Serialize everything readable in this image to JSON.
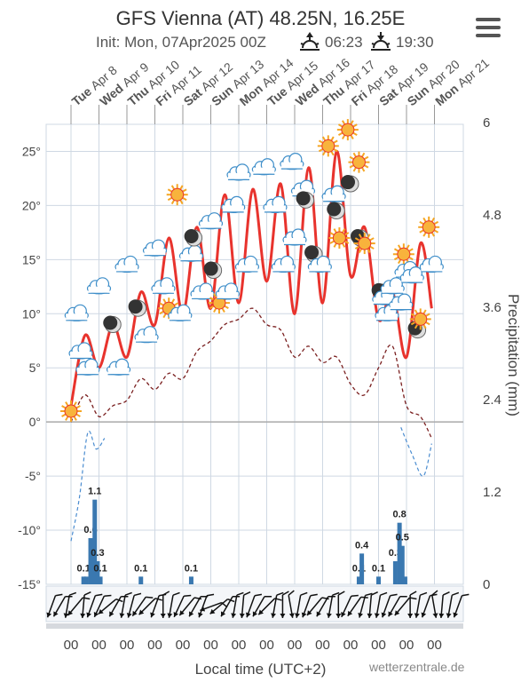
{
  "header": {
    "title": "GFS Vienna (AT) 48.25N, 16.25E",
    "init": "Init: Mon, 07Apr2025 00Z",
    "sunrise": "06:23",
    "sunset": "19:30"
  },
  "footer": {
    "xlabel": "Local time (UTC+2)",
    "credit": "wetterzentrale.de"
  },
  "colors": {
    "temperature": "#e8332d",
    "dewpoint": "#7a1f1f",
    "below_zero": "#4a8cd0",
    "precip": "#3a78b0",
    "grid": "#cfd8e3",
    "axis": "#555555"
  },
  "chart_data": {
    "type": "line",
    "days": [
      {
        "dow": "Tue",
        "date": "Apr 8"
      },
      {
        "dow": "Wed",
        "date": "Apr 9"
      },
      {
        "dow": "Thu",
        "date": "Apr 10"
      },
      {
        "dow": "Fri",
        "date": "Apr 11"
      },
      {
        "dow": "Sat",
        "date": "Apr 12"
      },
      {
        "dow": "Sun",
        "date": "Apr 13"
      },
      {
        "dow": "Mon",
        "date": "Apr 14"
      },
      {
        "dow": "Tue",
        "date": "Apr 15"
      },
      {
        "dow": "Wed",
        "date": "Apr 16"
      },
      {
        "dow": "Thu",
        "date": "Apr 17"
      },
      {
        "dow": "Fri",
        "date": "Apr 18"
      },
      {
        "dow": "Sat",
        "date": "Apr 19"
      },
      {
        "dow": "Sun",
        "date": "Apr 20"
      },
      {
        "dow": "Mon",
        "date": "Apr 21"
      }
    ],
    "y_left": {
      "ticks": [
        "25°",
        "20°",
        "15°",
        "10°",
        "5°",
        "0°",
        "-5°",
        "-10°",
        "-15°"
      ],
      "values": [
        25,
        20,
        15,
        10,
        5,
        0,
        -5,
        -10,
        -15
      ],
      "ylim": [
        -15,
        27.5
      ]
    },
    "y_right": {
      "label": "Precipitation (mm)",
      "ticks": [
        "6",
        "4.8",
        "3.6",
        "2.4",
        "1.2",
        "0"
      ],
      "values": [
        6,
        4.8,
        3.6,
        2.4,
        1.2,
        0
      ]
    },
    "x_bottom_ticks": [
      "00",
      "00",
      "00",
      "00",
      "00",
      "00",
      "00",
      "00",
      "00",
      "00",
      "00",
      "00",
      "00",
      "00"
    ],
    "series": [
      {
        "key": "temperature",
        "unit": "°C",
        "values": [
          [
            0.0,
            1.5
          ],
          [
            0.5,
            8.0
          ],
          [
            1.0,
            5.0
          ],
          [
            1.5,
            9.0
          ],
          [
            2.0,
            6.0
          ],
          [
            2.5,
            12.0
          ],
          [
            3.0,
            9.0
          ],
          [
            3.5,
            17.0
          ],
          [
            4.0,
            10.0
          ],
          [
            4.5,
            18.0
          ],
          [
            5.0,
            10.5
          ],
          [
            5.5,
            21.0
          ],
          [
            6.0,
            11.0
          ],
          [
            6.5,
            21.5
          ],
          [
            7.0,
            13.0
          ],
          [
            7.5,
            22.0
          ],
          [
            8.0,
            10.0
          ],
          [
            8.5,
            23.5
          ],
          [
            9.0,
            11.0
          ],
          [
            9.5,
            25.0
          ],
          [
            10.0,
            13.5
          ],
          [
            10.5,
            18.0
          ],
          [
            11.0,
            9.5
          ],
          [
            11.5,
            12.0
          ],
          [
            12.0,
            6.0
          ],
          [
            12.5,
            16.5
          ],
          [
            12.9,
            10.5
          ]
        ]
      },
      {
        "key": "dewpoint",
        "unit": "°C",
        "values": [
          [
            0.0,
            0.0
          ],
          [
            0.5,
            2.5
          ],
          [
            1.0,
            0.5
          ],
          [
            1.5,
            1.5
          ],
          [
            2.0,
            2.0
          ],
          [
            2.5,
            4.0
          ],
          [
            3.0,
            3.0
          ],
          [
            3.5,
            4.5
          ],
          [
            4.0,
            4.0
          ],
          [
            4.5,
            6.5
          ],
          [
            5.0,
            7.5
          ],
          [
            5.5,
            9.0
          ],
          [
            6.0,
            9.5
          ],
          [
            6.5,
            10.5
          ],
          [
            7.0,
            9.0
          ],
          [
            7.5,
            8.5
          ],
          [
            8.0,
            6.0
          ],
          [
            8.5,
            7.0
          ],
          [
            9.0,
            5.5
          ],
          [
            9.5,
            6.0
          ],
          [
            10.0,
            3.5
          ],
          [
            10.5,
            2.5
          ],
          [
            11.0,
            5.0
          ],
          [
            11.5,
            7.0
          ],
          [
            12.0,
            1.5
          ],
          [
            12.5,
            0.5
          ],
          [
            12.9,
            -1.5
          ]
        ]
      },
      {
        "key": "below_zero",
        "unit": "°C",
        "values": [
          [
            0.0,
            -11.0
          ],
          [
            0.3,
            -7.0
          ],
          [
            0.6,
            -1.0
          ],
          [
            0.9,
            -2.5
          ],
          [
            1.2,
            -1.5
          ],
          [
            11.8,
            -0.5
          ],
          [
            12.2,
            -3.0
          ],
          [
            12.6,
            -5.0
          ],
          [
            12.9,
            -2.0
          ]
        ]
      }
    ],
    "precip": {
      "unit": "mm",
      "bars": [
        {
          "t": 0.45,
          "v": 0.1,
          "label": "0.1"
        },
        {
          "t": 0.55,
          "v": 0.1
        },
        {
          "t": 0.7,
          "v": 0.6,
          "label": "0.6"
        },
        {
          "t": 0.85,
          "v": 1.1,
          "label": "1.1"
        },
        {
          "t": 0.95,
          "v": 0.3,
          "label": "0.3"
        },
        {
          "t": 1.05,
          "v": 0.1,
          "label": "0.1"
        },
        {
          "t": 2.5,
          "v": 0.1,
          "label": "0.1"
        },
        {
          "t": 4.3,
          "v": 0.1,
          "label": "0.1"
        },
        {
          "t": 10.3,
          "v": 0.1,
          "label": "0.1"
        },
        {
          "t": 10.4,
          "v": 0.4,
          "label": "0.4"
        },
        {
          "t": 11.0,
          "v": 0.1,
          "label": "0.1"
        },
        {
          "t": 11.6,
          "v": 0.3,
          "label": "0.3"
        },
        {
          "t": 11.75,
          "v": 0.8,
          "label": "0.8"
        },
        {
          "t": 11.85,
          "v": 0.5,
          "label": "0.5"
        },
        {
          "t": 11.95,
          "v": 0.1
        }
      ]
    },
    "weather_icons": [
      {
        "t": 0.0,
        "y": 1.0,
        "icon": "sun-icon"
      },
      {
        "t": 0.2,
        "y": 10.0,
        "icon": "cloud-icon"
      },
      {
        "t": 0.35,
        "y": 6.5,
        "icon": "cloud-icon"
      },
      {
        "t": 0.6,
        "y": 5.0,
        "icon": "cloud-icon"
      },
      {
        "t": 1.0,
        "y": 12.5,
        "icon": "cloud-icon"
      },
      {
        "t": 1.5,
        "y": 9.0,
        "icon": "moon-icon"
      },
      {
        "t": 1.7,
        "y": 5.0,
        "icon": "cloud-icon"
      },
      {
        "t": 2.0,
        "y": 14.5,
        "icon": "cloud-icon"
      },
      {
        "t": 2.4,
        "y": 10.5,
        "icon": "moon-icon"
      },
      {
        "t": 2.7,
        "y": 8.0,
        "icon": "cloud-icon"
      },
      {
        "t": 3.0,
        "y": 16.0,
        "icon": "cloud-icon"
      },
      {
        "t": 3.3,
        "y": 12.5,
        "icon": "cloud-icon"
      },
      {
        "t": 3.5,
        "y": 10.5,
        "icon": "sun-icon"
      },
      {
        "t": 3.8,
        "y": 21.0,
        "icon": "sun-icon"
      },
      {
        "t": 3.9,
        "y": 10.0,
        "icon": "cloud-icon"
      },
      {
        "t": 4.3,
        "y": 15.5,
        "icon": "cloud-icon"
      },
      {
        "t": 4.4,
        "y": 17.0,
        "icon": "moon-icon"
      },
      {
        "t": 4.7,
        "y": 12.0,
        "icon": "cloud-icon"
      },
      {
        "t": 5.0,
        "y": 18.5,
        "icon": "cloud-icon"
      },
      {
        "t": 5.1,
        "y": 14.0,
        "icon": "moon-icon"
      },
      {
        "t": 5.3,
        "y": 11.0,
        "icon": "sun-icon"
      },
      {
        "t": 5.6,
        "y": 12.0,
        "icon": "cloud-icon"
      },
      {
        "t": 5.8,
        "y": 20.0,
        "icon": "cloud-icon"
      },
      {
        "t": 6.0,
        "y": 23.0,
        "icon": "cloud-icon"
      },
      {
        "t": 6.3,
        "y": 14.5,
        "icon": "cloud-icon"
      },
      {
        "t": 6.9,
        "y": 23.5,
        "icon": "cloud-icon"
      },
      {
        "t": 7.3,
        "y": 20.0,
        "icon": "cloud-icon"
      },
      {
        "t": 7.6,
        "y": 14.5,
        "icon": "cloud-icon"
      },
      {
        "t": 7.9,
        "y": 24.0,
        "icon": "cloud-icon"
      },
      {
        "t": 8.0,
        "y": 17.0,
        "icon": "cloud-icon"
      },
      {
        "t": 8.3,
        "y": 21.5,
        "icon": "cloud-icon"
      },
      {
        "t": 8.4,
        "y": 20.5,
        "icon": "moon-icon"
      },
      {
        "t": 8.7,
        "y": 15.5,
        "icon": "moon-icon"
      },
      {
        "t": 8.9,
        "y": 14.5,
        "icon": "cloud-icon"
      },
      {
        "t": 9.2,
        "y": 25.5,
        "icon": "sun-icon"
      },
      {
        "t": 9.4,
        "y": 21.0,
        "icon": "cloud-icon"
      },
      {
        "t": 9.5,
        "y": 19.5,
        "icon": "moon-icon"
      },
      {
        "t": 9.6,
        "y": 17.0,
        "icon": "sun-icon"
      },
      {
        "t": 9.9,
        "y": 27.0,
        "icon": "sun-icon"
      },
      {
        "t": 10.0,
        "y": 22.0,
        "icon": "moon-icon"
      },
      {
        "t": 10.3,
        "y": 24.0,
        "icon": "sun-icon"
      },
      {
        "t": 10.35,
        "y": 17.0,
        "icon": "moon-icon"
      },
      {
        "t": 10.5,
        "y": 16.5,
        "icon": "sun-icon"
      },
      {
        "t": 11.1,
        "y": 12.0,
        "icon": "moon-icon"
      },
      {
        "t": 11.2,
        "y": 11.5,
        "icon": "cloud-icon"
      },
      {
        "t": 11.3,
        "y": 10.0,
        "icon": "cloud-icon"
      },
      {
        "t": 11.5,
        "y": 12.5,
        "icon": "cloud-icon"
      },
      {
        "t": 11.8,
        "y": 11.0,
        "icon": "cloud-icon"
      },
      {
        "t": 11.9,
        "y": 15.5,
        "icon": "sun-icon"
      },
      {
        "t": 12.0,
        "y": 14.0,
        "icon": "cloud-icon"
      },
      {
        "t": 12.2,
        "y": 13.5,
        "icon": "cloud-icon"
      },
      {
        "t": 12.4,
        "y": 8.5,
        "icon": "moon-icon"
      },
      {
        "t": 12.5,
        "y": 9.5,
        "icon": "sun-icon"
      },
      {
        "t": 12.8,
        "y": 18.0,
        "icon": "sun-icon"
      },
      {
        "t": 12.9,
        "y": 14.5,
        "icon": "cloud-icon"
      }
    ],
    "wind_arrows_deg": [
      110,
      120,
      100,
      130,
      95,
      110,
      115,
      140,
      120,
      100,
      105,
      125,
      135,
      110,
      90,
      100,
      115,
      130,
      120,
      110,
      160,
      140,
      120,
      100,
      95,
      110,
      120,
      135,
      100,
      90,
      80,
      100,
      110,
      130,
      120,
      100,
      90,
      115,
      125,
      105,
      95,
      100,
      110,
      120,
      130,
      90,
      100,
      110,
      80,
      95,
      100,
      110
    ]
  }
}
